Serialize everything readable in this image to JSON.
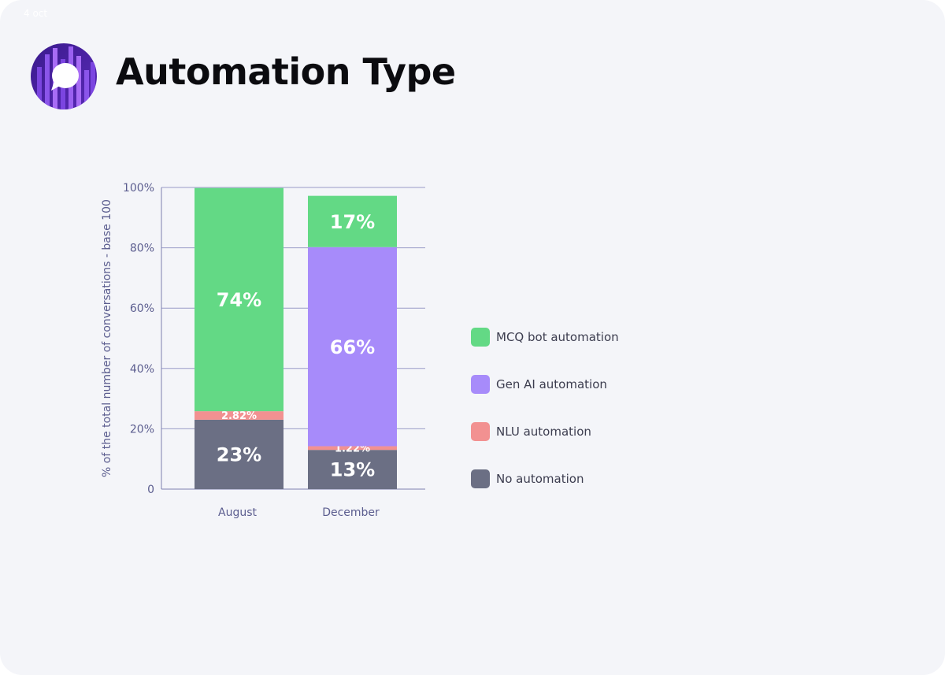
{
  "header": {
    "date": "4 oct",
    "title": "Automation Type",
    "logo_icon": "chat-bubble-icon",
    "logo_colors": [
      "#3a1a8c",
      "#7b45e0",
      "#a86cf5"
    ]
  },
  "chart_data": {
    "type": "bar",
    "stacked": true,
    "title": "Automation Type",
    "ylabel": "% of the total number of conversations - base 100",
    "xlabel": "",
    "ylim": [
      0,
      100
    ],
    "yticks": [
      "0",
      "20%",
      "40%",
      "60%",
      "80%",
      "100%"
    ],
    "categories": [
      "August",
      "December"
    ],
    "grid": true,
    "legend_position": "right",
    "series": [
      {
        "name": "No automation",
        "color": "#6b6f84",
        "values": [
          23,
          13
        ],
        "labels": [
          "23%",
          "13%"
        ]
      },
      {
        "name": "NLU automation",
        "color": "#f29191",
        "values": [
          2.82,
          1.22
        ],
        "labels": [
          "2.82%",
          "1.22%"
        ]
      },
      {
        "name": "Gen AI automation",
        "color": "#a78bfa",
        "values": [
          0,
          66
        ],
        "labels": [
          "",
          "66%"
        ]
      },
      {
        "name": "MCQ bot automation",
        "color": "#63d985",
        "values": [
          74,
          17
        ],
        "labels": [
          "74%",
          "17%"
        ]
      }
    ]
  },
  "legend": {
    "items": [
      {
        "label": "MCQ bot automation",
        "color": "#63d985"
      },
      {
        "label": "Gen AI automation",
        "color": "#a78bfa"
      },
      {
        "label": "NLU automation",
        "color": "#f29191"
      },
      {
        "label": "No automation",
        "color": "#6b6f84"
      }
    ]
  }
}
